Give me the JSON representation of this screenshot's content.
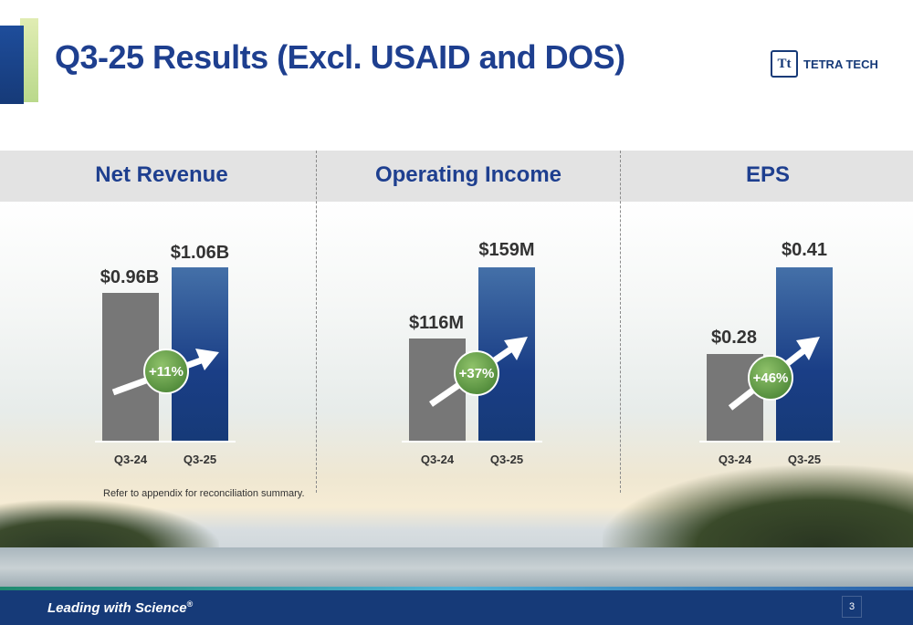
{
  "title": "Q3-25 Results (Excl. USAID and DOS)",
  "logo": {
    "mark": "Tt",
    "text": "TETRA TECH"
  },
  "panels": [
    {
      "label": "Net Revenue",
      "prior_label": "$0.96B",
      "current_label": "$1.06B",
      "growth": "+11%",
      "prior_period": "Q3-24",
      "current_period": "Q3-25"
    },
    {
      "label": "Operating Income",
      "prior_label": "$116M",
      "current_label": "$159M",
      "growth": "+37%",
      "prior_period": "Q3-24",
      "current_period": "Q3-25"
    },
    {
      "label": "EPS",
      "prior_label": "$0.28",
      "current_label": "$0.41",
      "growth": "+46%",
      "prior_period": "Q3-24",
      "current_period": "Q3-25"
    }
  ],
  "footnote": "Refer to appendix for reconciliation summary.",
  "footer": {
    "tagline": "Leading with Science",
    "trademark": "®",
    "page": "3"
  },
  "colors": {
    "brand_blue": "#1e3f8f",
    "footer_blue": "#163a78",
    "prior_bar": "#777777",
    "growth_green": "#5a9a3e"
  }
}
